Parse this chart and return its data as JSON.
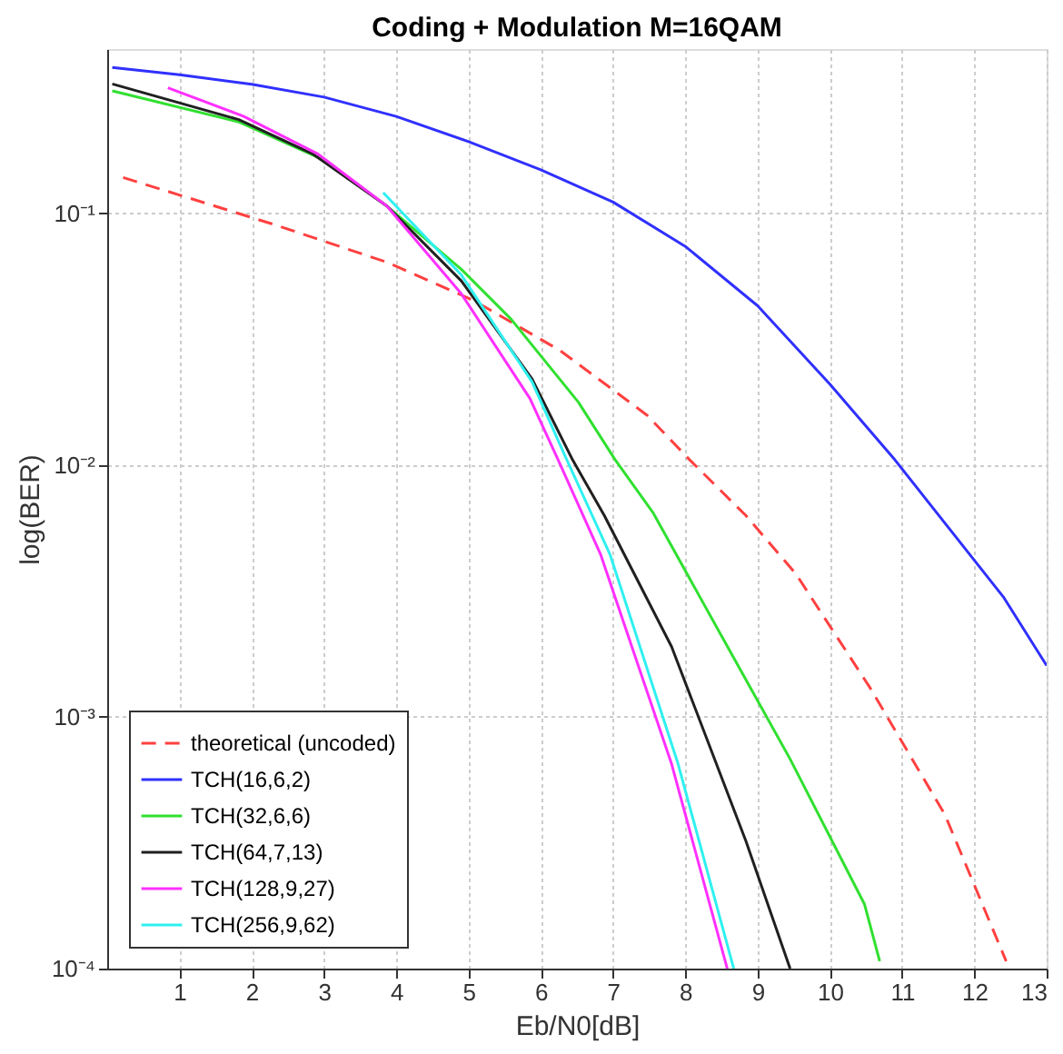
{
  "chart_data": {
    "type": "line",
    "title": "Coding + Modulation M=16QAM",
    "xlabel": "Eb/N0[dB]",
    "ylabel": "log(BER)",
    "log": "y",
    "grid": true,
    "legend": "bottom left",
    "xlim": [
      0,
      13
    ],
    "xticks": [
      1,
      2,
      3,
      4,
      5,
      6,
      7,
      8,
      9,
      10,
      11,
      12,
      13
    ],
    "ylim": [
      0.0001,
      0.45
    ],
    "yticks": [
      {
        "value": 0.0001,
        "label": "10⁻⁴"
      },
      {
        "value": 0.001,
        "label": "10⁻³"
      },
      {
        "value": 0.01,
        "label": "10⁻²"
      },
      {
        "value": 0.1,
        "label": "10⁻¹"
      }
    ],
    "series": [
      {
        "name": "theoretical (uncoded)",
        "color": "#ff4040",
        "line_style": "dashed",
        "x": [
          0.22,
          2.33,
          3.87,
          5.08,
          6.27,
          7.47,
          8.06,
          8.84,
          9.53,
          10.56,
          11.59,
          12.44
        ],
        "values": [
          0.139,
          0.09,
          0.064,
          0.045,
          0.0285,
          0.0158,
          0.0105,
          0.0063,
          0.0037,
          0.0013,
          0.00041,
          0.000107
        ]
      },
      {
        "name": "TCH(16,6,2)",
        "color": "#3030ff",
        "line_style": "solid",
        "x": [
          0.07,
          1,
          2,
          3,
          4,
          5,
          6,
          7,
          8,
          9,
          10,
          10.9,
          12.4,
          13
        ],
        "values": [
          0.38,
          0.356,
          0.326,
          0.29,
          0.243,
          0.193,
          0.149,
          0.111,
          0.074,
          0.043,
          0.021,
          0.0105,
          0.003,
          0.0016
        ]
      },
      {
        "name": "TCH(32,6,6)",
        "color": "#30e030",
        "line_style": "solid",
        "x": [
          0.07,
          1.82,
          3.02,
          3.87,
          4.9,
          5.59,
          6.52,
          7.03,
          7.55,
          8.5,
          9.45,
          10.48,
          10.69
        ],
        "values": [
          0.307,
          0.231,
          0.162,
          0.107,
          0.06,
          0.038,
          0.0178,
          0.0105,
          0.0065,
          0.0021,
          0.00068,
          0.00018,
          0.000107
        ]
      },
      {
        "name": "TCH(64,7,13)",
        "color": "#202020",
        "line_style": "solid",
        "x": [
          0.07,
          1.82,
          2.85,
          3.87,
          4.9,
          5.88,
          6.44,
          6.88,
          7.81,
          8.84,
          9.45
        ],
        "values": [
          0.327,
          0.236,
          0.172,
          0.107,
          0.054,
          0.022,
          0.0105,
          0.0063,
          0.0019,
          0.00032,
          0.0001
        ]
      },
      {
        "name": "TCH(128,9,27)",
        "color": "#ff30ff",
        "line_style": "solid",
        "x": [
          0.84,
          1.89,
          2.92,
          3.87,
          4.9,
          5.85,
          6.24,
          6.83,
          7.81,
          8.58
        ],
        "values": [
          0.316,
          0.243,
          0.172,
          0.107,
          0.048,
          0.0184,
          0.0105,
          0.0044,
          0.00065,
          0.0001
        ]
      },
      {
        "name": "TCH(256,9,62)",
        "color": "#30f0f0",
        "line_style": "solid",
        "x": [
          3.82,
          4.9,
          5.88,
          6.36,
          6.96,
          7.9,
          8.67
        ],
        "values": [
          0.121,
          0.057,
          0.0214,
          0.0105,
          0.0044,
          0.00065,
          0.0001
        ]
      }
    ]
  }
}
